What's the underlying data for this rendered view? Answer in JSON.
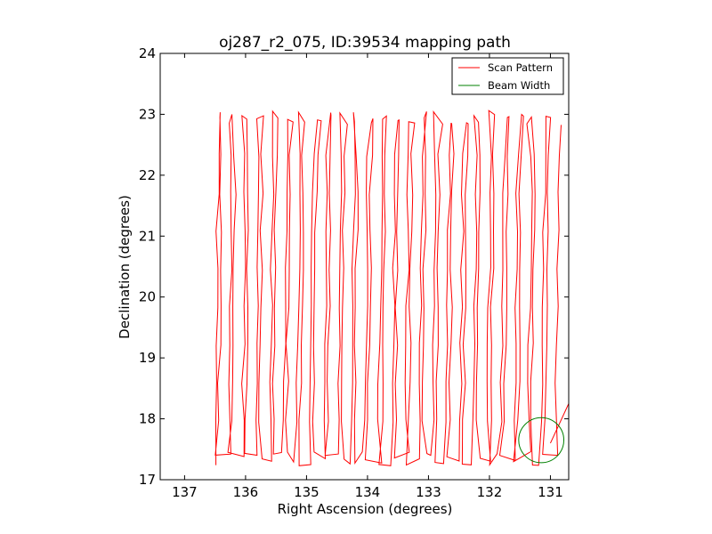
{
  "colors": {
    "scan": "#ff0000",
    "beam": "#008000",
    "axes": "#000000",
    "background": "#ffffff"
  },
  "chart_data": {
    "type": "line",
    "title": "oj287_r2_075, ID:39534 mapping path",
    "xlabel": "Right Ascension (degrees)",
    "ylabel": "Declination (degrees)",
    "xlim": [
      137.4,
      130.7
    ],
    "ylim": [
      17,
      24
    ],
    "x_inverted": true,
    "xticks": [
      137,
      136,
      135,
      134,
      133,
      132,
      131
    ],
    "yticks": [
      17,
      18,
      19,
      20,
      21,
      22,
      23,
      24
    ],
    "grid": false,
    "legend": {
      "position": "top-right",
      "entries": [
        "Scan Pattern",
        "Beam Width"
      ]
    },
    "series": [
      {
        "name": "Scan Pattern",
        "color": "#ff0000",
        "description": "Raster scan: vertical legs roughly every 0.11 deg in RA from 136.5 to 130.9, each running between Dec 17.35 and 22.95 with jagged offsets",
        "ra_start": 136.5,
        "ra_end": 130.92,
        "leg_count": 51,
        "dec_min": 17.35,
        "dec_max": 22.95,
        "extra_segment": [
          [
            131.0,
            17.6
          ],
          [
            130.7,
            18.25
          ]
        ]
      },
      {
        "name": "Beam Width",
        "color": "#008000",
        "shape": "circle",
        "center": [
          131.15,
          17.65
        ],
        "radius_deg": 0.37
      }
    ]
  }
}
